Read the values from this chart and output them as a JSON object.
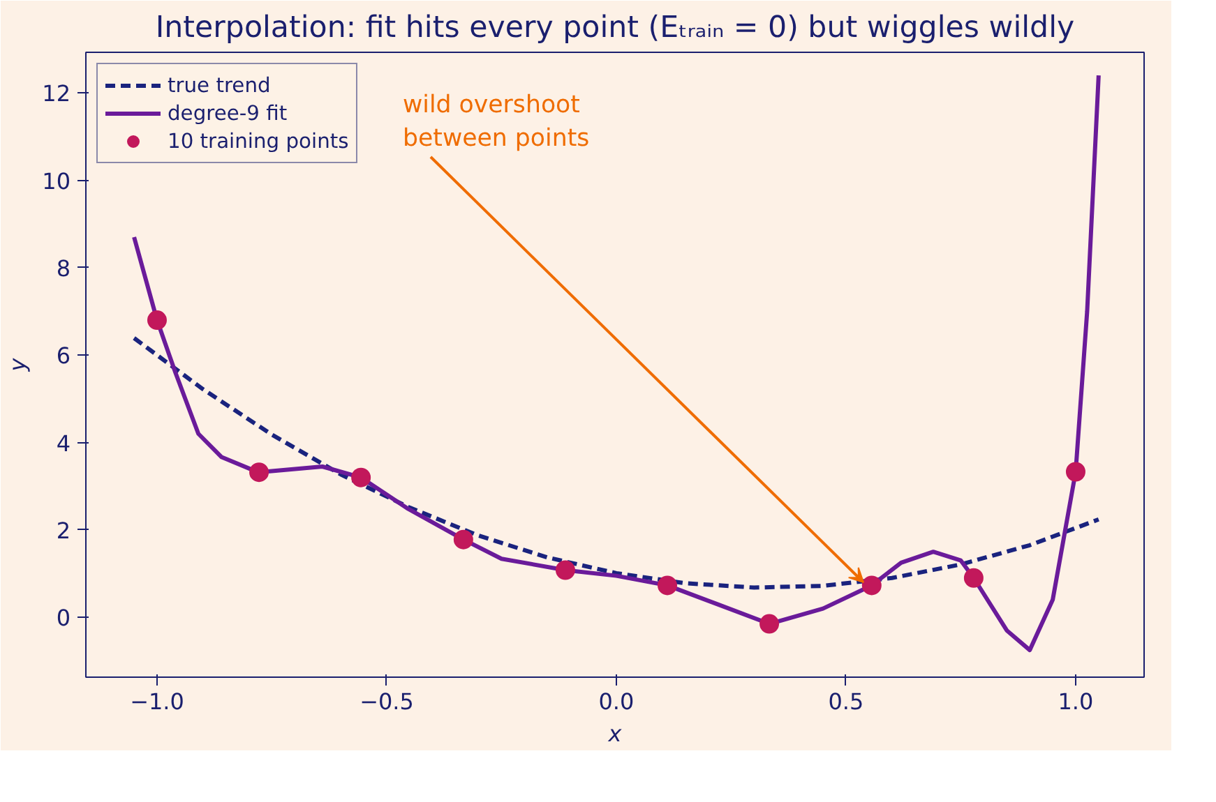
{
  "chart_data": {
    "type": "line",
    "title": "Interpolation: fit hits every point (Eₜᵣₐᵢₙ = 0) but wiggles wildly",
    "xlabel": "x",
    "ylabel": "y",
    "xlim": [
      -1.155,
      1.149
    ],
    "ylim": [
      -1.37,
      12.93
    ],
    "xticks": [
      {
        "value": -1,
        "label": "−1.0"
      },
      {
        "value": -0.5,
        "label": "−0.5"
      },
      {
        "value": 0,
        "label": "0.0"
      },
      {
        "value": 0.5,
        "label": "0.5"
      },
      {
        "value": 1,
        "label": "1.0"
      }
    ],
    "yticks": [
      0,
      2,
      4,
      6,
      8,
      10,
      12
    ],
    "grid": false,
    "legend": "top left",
    "series": [
      {
        "name": "true trend",
        "line_style": "dashed",
        "color": "#1a237e",
        "x": [
          -1.05,
          -0.9,
          -0.75,
          -0.6,
          -0.45,
          -0.3,
          -0.15,
          0,
          0.15,
          0.3,
          0.45,
          0.6,
          0.75,
          0.9,
          1.05
        ],
        "values": [
          6.39,
          5.22,
          4.18,
          3.27,
          2.51,
          1.87,
          1.37,
          1.01,
          0.78,
          0.68,
          0.72,
          0.9,
          1.21,
          1.65,
          2.24
        ]
      },
      {
        "name": "degree-9 fit",
        "line_style": "solid",
        "color": "#6a1b9a",
        "x": [
          -1.05,
          -1.0,
          -0.96,
          -0.91,
          -0.86,
          -0.78,
          -0.64,
          -0.556,
          -0.456,
          -0.333,
          -0.25,
          -0.111,
          0,
          0.111,
          0.22,
          0.333,
          0.45,
          0.556,
          0.62,
          0.69,
          0.75,
          0.778,
          0.85,
          0.9,
          0.95,
          1.0,
          1.025,
          1.05
        ],
        "values": [
          8.7,
          6.8,
          5.6,
          4.2,
          3.67,
          3.32,
          3.45,
          3.2,
          2.5,
          1.78,
          1.34,
          1.08,
          0.95,
          0.73,
          0.3,
          -0.15,
          0.2,
          0.73,
          1.25,
          1.5,
          1.3,
          0.9,
          -0.3,
          -0.75,
          0.4,
          3.33,
          7.0,
          12.4
        ]
      },
      {
        "name": "10 training points",
        "type": "scatter",
        "marker": "circle",
        "color": "#c2185b",
        "x": [
          -1,
          -0.778,
          -0.556,
          -0.333,
          -0.111,
          0.111,
          0.333,
          0.556,
          0.778,
          1
        ],
        "values": [
          6.8,
          3.32,
          3.2,
          1.78,
          1.08,
          0.73,
          -0.15,
          0.73,
          0.9,
          3.33
        ]
      }
    ],
    "annotations": [
      {
        "text": "wild overshoot\nbetween points",
        "x": 0.538,
        "y": 0.8
      }
    ]
  }
}
